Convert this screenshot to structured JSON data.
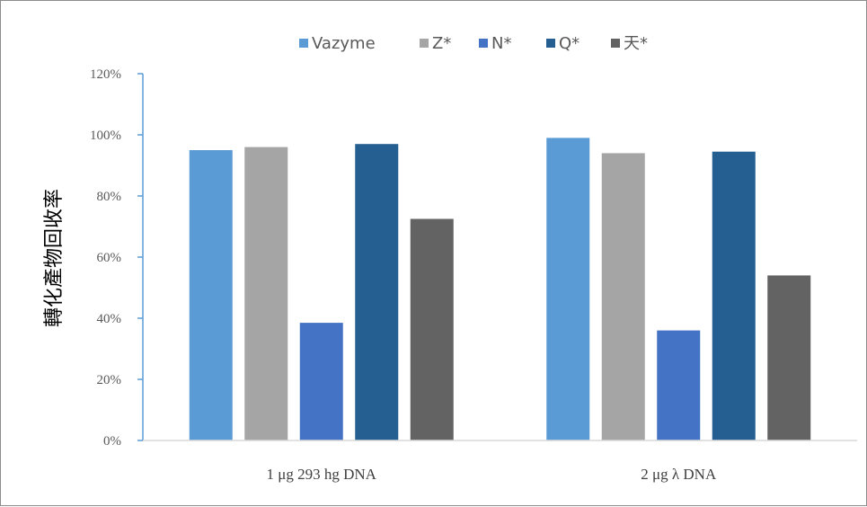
{
  "chart_data": {
    "type": "bar",
    "categories": [
      "1 μg 293 hg DNA",
      "2 μg λ DNA"
    ],
    "series": [
      {
        "name": "Vazyme",
        "values": [
          95,
          99
        ],
        "color": "#5b9bd5"
      },
      {
        "name": "Z*",
        "values": [
          96,
          94
        ],
        "color": "#a5a5a5"
      },
      {
        "name": "N*",
        "values": [
          38.5,
          36
        ],
        "color": "#4472c4"
      },
      {
        "name": "Q*",
        "values": [
          97,
          94.5
        ],
        "color": "#255e91"
      },
      {
        "name": "天*",
        "values": [
          72.5,
          54
        ],
        "color": "#636363"
      }
    ],
    "ylabel": "轉化產物回收率",
    "xlabel": "",
    "ylim": [
      0,
      120
    ],
    "yticks": [
      0,
      20,
      40,
      60,
      80,
      100,
      120
    ],
    "ytick_labels": [
      "0%",
      "20%",
      "40%",
      "60%",
      "80%",
      "100%",
      "120%"
    ],
    "legend_position": "top",
    "grid": false
  }
}
